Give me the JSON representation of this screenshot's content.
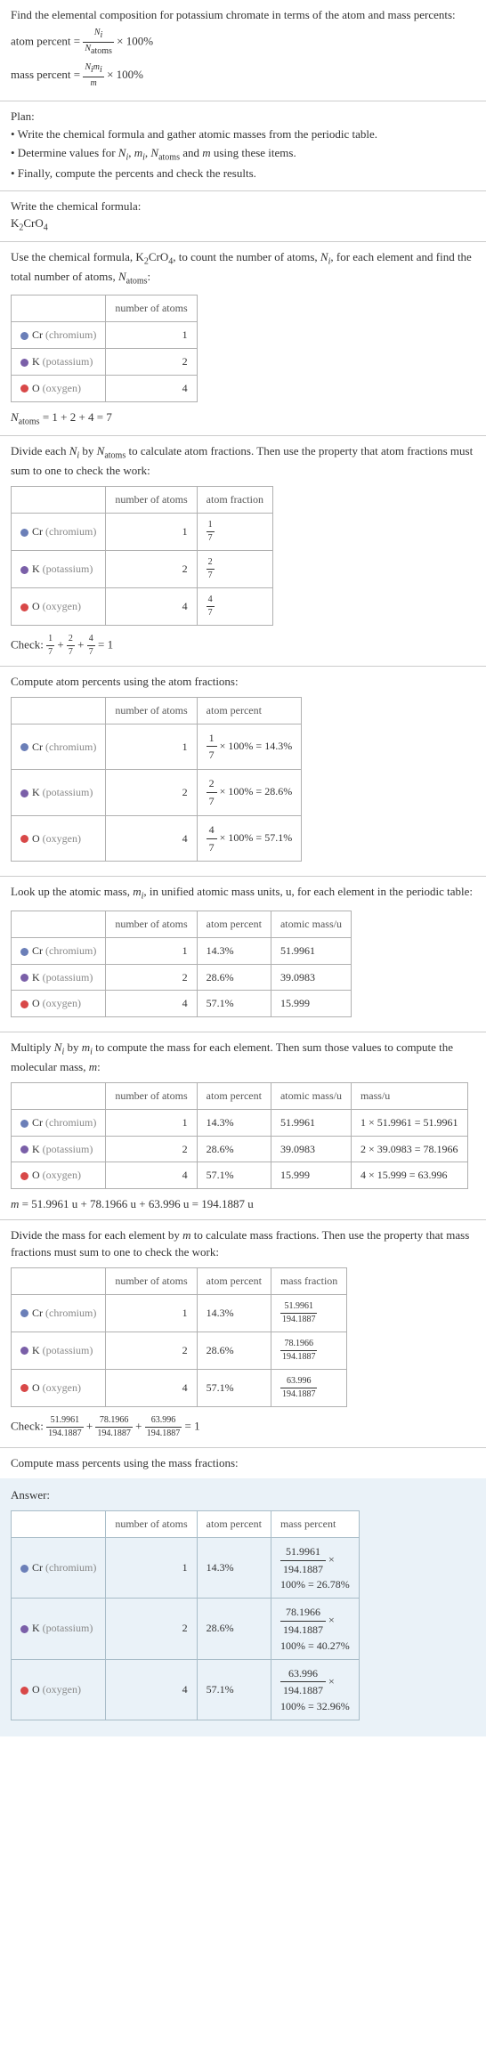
{
  "colors": {
    "cr": "#6b7fb8",
    "k": "#7a5fa8",
    "o": "#d84848",
    "border": "#b0b0b0",
    "answerBg": "#eaf2f8",
    "answerBorder": "#a8bcc8",
    "text": "#333333",
    "muted": "#888888"
  },
  "intro": {
    "line1": "Find the elemental composition for potassium chromate in terms of the atom and mass percents:",
    "atomPercentLabel": "atom percent = ",
    "atomPercentNum": "N",
    "atomPercentNumSub": "i",
    "atomPercentDen": "N",
    "atomPercentDenSub": "atoms",
    "times100": " × 100%",
    "massPercentLabel": "mass percent = ",
    "massPercentNum": "N",
    "massPercentNumSub": "i",
    "massPercentNum2": "m",
    "massPercentNum2Sub": "i",
    "massPercentDen": "m"
  },
  "plan": {
    "title": "Plan:",
    "b1a": "• Write the chemical formula and gather atomic masses from the periodic table.",
    "b2a": "• Determine values for ",
    "b2b": ", ",
    "b2c": ", ",
    "b2d": " and ",
    "b2e": " using these items.",
    "b3": "• Finally, compute the percents and check the results."
  },
  "step1": {
    "title": "Write the chemical formula:",
    "formula": "K",
    "formula2": "CrO"
  },
  "step2": {
    "line1a": "Use the chemical formula, K",
    "line1b": "CrO",
    "line1c": ", to count the number of atoms, ",
    "line1d": ", for each element and find the total number of atoms, ",
    "line1e": ":",
    "headers": {
      "col2": "number of atoms"
    },
    "rows": [
      {
        "el": "Cr",
        "name": "(chromium)",
        "n": "1",
        "color": "cr"
      },
      {
        "el": "K",
        "name": "(potassium)",
        "n": "2",
        "color": "k"
      },
      {
        "el": "O",
        "name": "(oxygen)",
        "n": "4",
        "color": "o"
      }
    ],
    "sumLabel": "N",
    "sumSub": "atoms",
    "sumExpr": " = 1 + 2 + 4 = 7"
  },
  "step3": {
    "line1a": "Divide each ",
    "line1b": " by ",
    "line1c": " to calculate atom fractions. Then use the property that atom fractions must sum to one to check the work:",
    "headers": {
      "col2": "number of atoms",
      "col3": "atom fraction"
    },
    "rows": [
      {
        "el": "Cr",
        "name": "(chromium)",
        "n": "1",
        "fnum": "1",
        "fden": "7",
        "color": "cr"
      },
      {
        "el": "K",
        "name": "(potassium)",
        "n": "2",
        "fnum": "2",
        "fden": "7",
        "color": "k"
      },
      {
        "el": "O",
        "name": "(oxygen)",
        "n": "4",
        "fnum": "4",
        "fden": "7",
        "color": "o"
      }
    ],
    "check": "Check: ",
    "checkEq": " = 1"
  },
  "step4": {
    "title": "Compute atom percents using the atom fractions:",
    "headers": {
      "col2": "number of atoms",
      "col3": "atom percent"
    },
    "rows": [
      {
        "el": "Cr",
        "name": "(chromium)",
        "n": "1",
        "fnum": "1",
        "fden": "7",
        "pct": " × 100% = 14.3%",
        "color": "cr"
      },
      {
        "el": "K",
        "name": "(potassium)",
        "n": "2",
        "fnum": "2",
        "fden": "7",
        "pct": " × 100% = 28.6%",
        "color": "k"
      },
      {
        "el": "O",
        "name": "(oxygen)",
        "n": "4",
        "fnum": "4",
        "fden": "7",
        "pct": " × 100% = 57.1%",
        "color": "o"
      }
    ]
  },
  "step5": {
    "line1a": "Look up the atomic mass, ",
    "line1b": ", in unified atomic mass units, u, for each element in the periodic table:",
    "headers": {
      "col2": "number of atoms",
      "col3": "atom percent",
      "col4": "atomic mass/u"
    },
    "rows": [
      {
        "el": "Cr",
        "name": "(chromium)",
        "n": "1",
        "pct": "14.3%",
        "mass": "51.9961",
        "color": "cr"
      },
      {
        "el": "K",
        "name": "(potassium)",
        "n": "2",
        "pct": "28.6%",
        "mass": "39.0983",
        "color": "k"
      },
      {
        "el": "O",
        "name": "(oxygen)",
        "n": "4",
        "pct": "57.1%",
        "mass": "15.999",
        "color": "o"
      }
    ]
  },
  "step6": {
    "line1a": "Multiply ",
    "line1b": " by ",
    "line1c": " to compute the mass for each element. Then sum those values to compute the molecular mass, ",
    "line1d": ":",
    "headers": {
      "col2": "number of atoms",
      "col3": "atom percent",
      "col4": "atomic mass/u",
      "col5": "mass/u"
    },
    "rows": [
      {
        "el": "Cr",
        "name": "(chromium)",
        "n": "1",
        "pct": "14.3%",
        "mass": "51.9961",
        "calc": "1 × 51.9961 = 51.9961",
        "color": "cr"
      },
      {
        "el": "K",
        "name": "(potassium)",
        "n": "2",
        "pct": "28.6%",
        "mass": "39.0983",
        "calc": "2 × 39.0983 = 78.1966",
        "color": "k"
      },
      {
        "el": "O",
        "name": "(oxygen)",
        "n": "4",
        "pct": "57.1%",
        "mass": "15.999",
        "calc": "4 × 15.999 = 63.996",
        "color": "o"
      }
    ],
    "sumLabel": "m",
    "sumExpr": " = 51.9961 u + 78.1966 u + 63.996 u = 194.1887 u"
  },
  "step7": {
    "line1a": "Divide the mass for each element by ",
    "line1b": " to calculate mass fractions. Then use the property that mass fractions must sum to one to check the work:",
    "headers": {
      "col2": "number of atoms",
      "col3": "atom percent",
      "col4": "mass fraction"
    },
    "rows": [
      {
        "el": "Cr",
        "name": "(chromium)",
        "n": "1",
        "pct": "14.3%",
        "mnum": "51.9961",
        "mden": "194.1887",
        "color": "cr"
      },
      {
        "el": "K",
        "name": "(potassium)",
        "n": "2",
        "pct": "28.6%",
        "mnum": "78.1966",
        "mden": "194.1887",
        "color": "k"
      },
      {
        "el": "O",
        "name": "(oxygen)",
        "n": "4",
        "pct": "57.1%",
        "mnum": "63.996",
        "mden": "194.1887",
        "color": "o"
      }
    ],
    "check": "Check: ",
    "checkEq": " = 1"
  },
  "step8": {
    "title": "Compute mass percents using the mass fractions:"
  },
  "answer": {
    "title": "Answer:",
    "headers": {
      "col2": "number of atoms",
      "col3": "atom percent",
      "col4": "mass percent"
    },
    "rows": [
      {
        "el": "Cr",
        "name": "(chromium)",
        "n": "1",
        "pct": "14.3%",
        "mnum": "51.9961",
        "mden": "194.1887",
        "res": "100% = 26.78%",
        "color": "cr"
      },
      {
        "el": "K",
        "name": "(potassium)",
        "n": "2",
        "pct": "28.6%",
        "mnum": "78.1966",
        "mden": "194.1887",
        "res": "100% = 40.27%",
        "color": "k"
      },
      {
        "el": "O",
        "name": "(oxygen)",
        "n": "4",
        "pct": "57.1%",
        "mnum": "63.996",
        "mden": "194.1887",
        "res": "100% = 32.96%",
        "color": "o"
      }
    ]
  }
}
